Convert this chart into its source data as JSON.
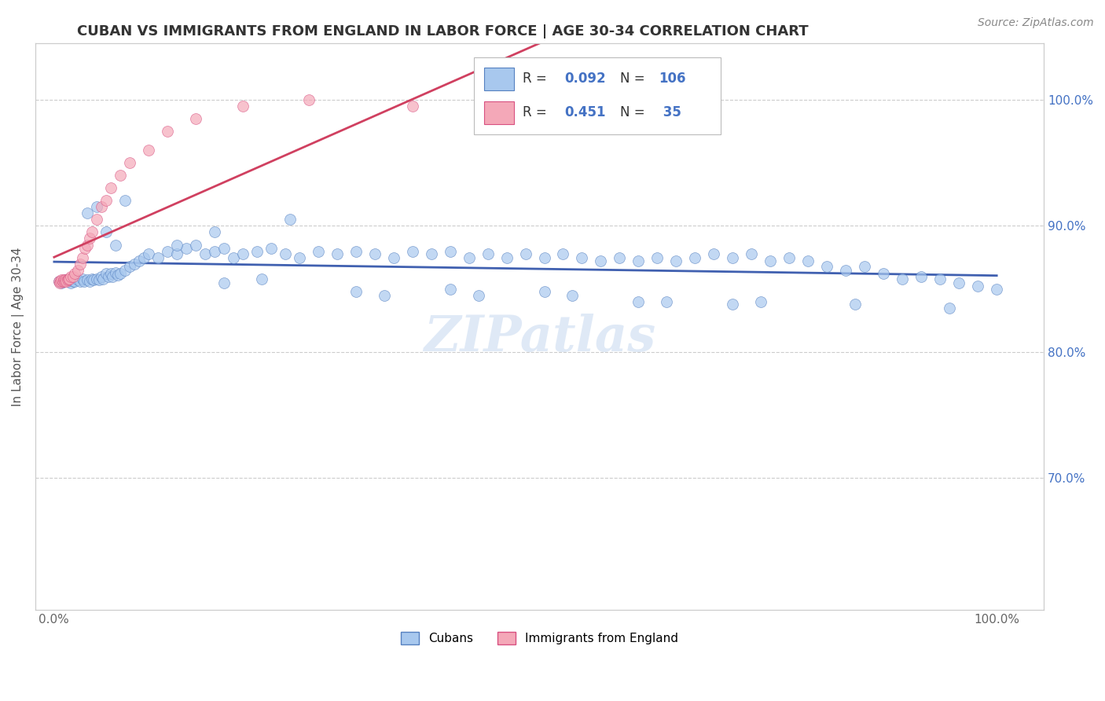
{
  "title": "CUBAN VS IMMIGRANTS FROM ENGLAND IN LABOR FORCE | AGE 30-34 CORRELATION CHART",
  "source": "Source: ZipAtlas.com",
  "ylabel": "In Labor Force | Age 30-34",
  "xlim": [
    -0.02,
    1.05
  ],
  "ylim": [
    0.595,
    1.045
  ],
  "xticks": [
    0.0,
    0.2,
    0.4,
    0.6,
    0.8,
    1.0
  ],
  "xtick_labels": [
    "0.0%",
    "",
    "",
    "",
    "",
    "100.0%"
  ],
  "ytick_values_right": [
    0.7,
    0.8,
    0.9,
    1.0
  ],
  "ytick_labels_right": [
    "70.0%",
    "80.0%",
    "90.0%",
    "100.0%"
  ],
  "color_blue": "#A8C8EE",
  "color_pink": "#F4A8B8",
  "color_blue_edge": "#5580C0",
  "color_pink_edge": "#D85080",
  "color_blue_line": "#4060B0",
  "color_pink_line": "#D04060",
  "color_blue_text": "#4472C4",
  "watermark": "ZIPatlas",
  "cubans_x": [
    0.005,
    0.008,
    0.01,
    0.012,
    0.015,
    0.018,
    0.02,
    0.022,
    0.025,
    0.028,
    0.03,
    0.032,
    0.035,
    0.038,
    0.04,
    0.042,
    0.045,
    0.048,
    0.05,
    0.052,
    0.055,
    0.058,
    0.06,
    0.062,
    0.065,
    0.068,
    0.07,
    0.075,
    0.08,
    0.085,
    0.09,
    0.095,
    0.1,
    0.11,
    0.12,
    0.13,
    0.14,
    0.15,
    0.16,
    0.17,
    0.18,
    0.19,
    0.2,
    0.215,
    0.23,
    0.245,
    0.26,
    0.28,
    0.3,
    0.32,
    0.34,
    0.36,
    0.38,
    0.4,
    0.42,
    0.44,
    0.46,
    0.48,
    0.5,
    0.52,
    0.54,
    0.56,
    0.58,
    0.6,
    0.62,
    0.64,
    0.66,
    0.68,
    0.7,
    0.72,
    0.74,
    0.76,
    0.78,
    0.8,
    0.82,
    0.84,
    0.86,
    0.88,
    0.9,
    0.92,
    0.94,
    0.96,
    0.98,
    1.0,
    0.035,
    0.045,
    0.055,
    0.065,
    0.075,
    0.13,
    0.17,
    0.25,
    0.35,
    0.45,
    0.55,
    0.65,
    0.75,
    0.85,
    0.95,
    0.18,
    0.22,
    0.32,
    0.42,
    0.52,
    0.62,
    0.72
  ],
  "cubans_y": [
    0.856,
    0.855,
    0.856,
    0.857,
    0.856,
    0.855,
    0.856,
    0.856,
    0.857,
    0.856,
    0.858,
    0.856,
    0.857,
    0.856,
    0.858,
    0.857,
    0.858,
    0.857,
    0.86,
    0.858,
    0.862,
    0.86,
    0.862,
    0.86,
    0.863,
    0.861,
    0.862,
    0.865,
    0.868,
    0.87,
    0.872,
    0.875,
    0.878,
    0.875,
    0.88,
    0.878,
    0.882,
    0.885,
    0.878,
    0.88,
    0.882,
    0.875,
    0.878,
    0.88,
    0.882,
    0.878,
    0.875,
    0.88,
    0.878,
    0.88,
    0.878,
    0.875,
    0.88,
    0.878,
    0.88,
    0.875,
    0.878,
    0.875,
    0.878,
    0.875,
    0.878,
    0.875,
    0.872,
    0.875,
    0.872,
    0.875,
    0.872,
    0.875,
    0.878,
    0.875,
    0.878,
    0.872,
    0.875,
    0.872,
    0.868,
    0.865,
    0.868,
    0.862,
    0.858,
    0.86,
    0.858,
    0.855,
    0.852,
    0.85,
    0.91,
    0.915,
    0.895,
    0.885,
    0.92,
    0.885,
    0.895,
    0.905,
    0.845,
    0.845,
    0.845,
    0.84,
    0.84,
    0.838,
    0.835,
    0.855,
    0.858,
    0.848,
    0.85,
    0.848,
    0.84,
    0.838
  ],
  "england_x": [
    0.005,
    0.006,
    0.007,
    0.008,
    0.009,
    0.01,
    0.011,
    0.012,
    0.013,
    0.014,
    0.015,
    0.016,
    0.018,
    0.02,
    0.022,
    0.025,
    0.028,
    0.03,
    0.033,
    0.035,
    0.038,
    0.04,
    0.045,
    0.05,
    0.055,
    0.06,
    0.07,
    0.08,
    0.1,
    0.12,
    0.15,
    0.2,
    0.27,
    0.38,
    0.6
  ],
  "england_y": [
    0.856,
    0.855,
    0.856,
    0.857,
    0.856,
    0.857,
    0.856,
    0.857,
    0.856,
    0.857,
    0.858,
    0.858,
    0.86,
    0.86,
    0.862,
    0.865,
    0.87,
    0.875,
    0.882,
    0.885,
    0.89,
    0.895,
    0.905,
    0.915,
    0.92,
    0.93,
    0.94,
    0.95,
    0.96,
    0.975,
    0.985,
    0.995,
    1.0,
    0.995,
    0.995
  ]
}
